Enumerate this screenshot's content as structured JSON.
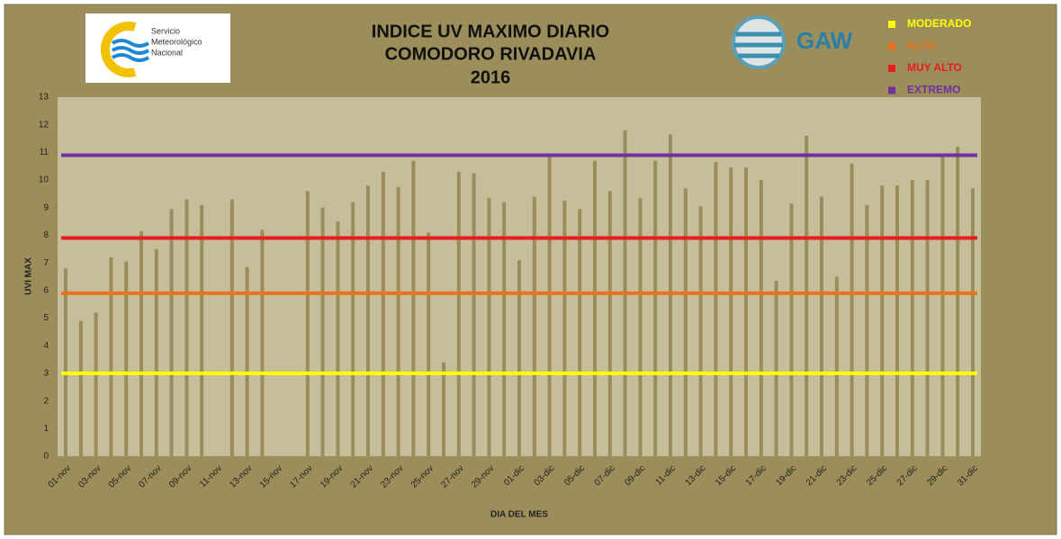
{
  "chart_data": {
    "type": "bar",
    "title": [
      "INDICE UV MAXIMO DIARIO",
      "COMODORO RIVADAVIA",
      "2016"
    ],
    "logos": [
      "Servicio",
      "Meteorológico",
      "Nacional",
      "GAW"
    ],
    "x_label": "DIA DEL MES",
    "y_label": "UVI MAX",
    "categories": [
      "01-nov",
      null,
      "03-nov",
      null,
      "05-nov",
      null,
      "07-nov",
      null,
      "09-nov",
      null,
      "11-nov",
      null,
      "13-nov",
      null,
      "15-nov",
      null,
      "17-nov",
      null,
      "19-nov",
      null,
      "21-nov",
      null,
      "23-nov",
      null,
      "25-nov",
      null,
      "27-nov",
      null,
      "29-nov",
      null,
      "01-dic",
      null,
      "03-dic",
      null,
      "05-dic",
      null,
      "07-dic",
      null,
      "09-dic",
      null,
      "11-dic",
      null,
      "13-dic",
      null,
      "15-dic",
      null,
      "17-dic",
      null,
      "19-dic",
      null,
      "21-dic",
      null,
      "23-dic",
      null,
      "25-dic",
      null,
      "27-dic",
      null,
      "29-dic",
      null,
      "31-dic"
    ],
    "values": [
      6.8,
      4.9,
      5.2,
      7.2,
      7.05,
      8.15,
      7.5,
      8.95,
      9.3,
      9.1,
      null,
      9.3,
      6.85,
      8.2,
      null,
      null,
      9.6,
      9.0,
      8.5,
      9.2,
      9.8,
      10.3,
      9.75,
      10.7,
      8.1,
      3.4,
      10.3,
      10.25,
      9.35,
      9.2,
      7.1,
      9.4,
      10.85,
      9.25,
      8.95,
      10.7,
      9.6,
      11.8,
      9.35,
      10.7,
      11.65,
      9.7,
      9.05,
      10.65,
      10.45,
      10.45,
      10.0,
      6.35,
      9.15,
      11.6,
      9.4,
      6.5,
      10.6,
      9.1,
      9.8,
      9.8,
      10.0,
      10.0,
      10.9,
      11.2,
      9.7
    ],
    "color": "#9a8d5c",
    "thresholds": [
      {
        "name": "MODERADO",
        "color": "#ffff00",
        "value": 3
      },
      {
        "name": "ALTO",
        "color": "#e8731c",
        "value": 5.9
      },
      {
        "name": "MUY ALTO",
        "color": "#e81c1c",
        "value": 7.9
      },
      {
        "name": "EXTREMO",
        "color": "#7030a0",
        "value": 10.9
      }
    ],
    "ylim": [
      0,
      13
    ],
    "yticks": [
      0,
      1,
      2,
      3,
      4,
      5,
      6,
      7,
      8,
      9,
      10,
      11,
      12,
      13
    ]
  }
}
